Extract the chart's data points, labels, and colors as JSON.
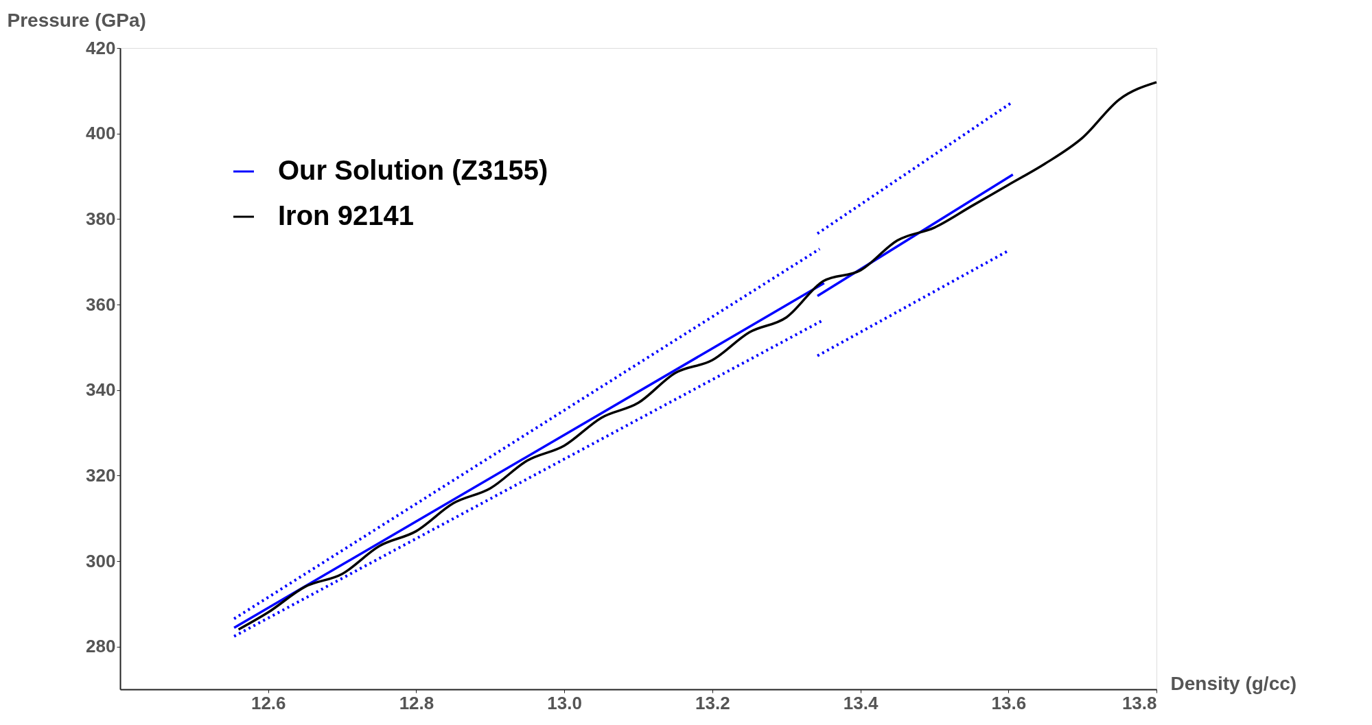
{
  "chart_data": {
    "type": "line",
    "xlabel": "Density (g/cc)",
    "ylabel": "Pressure (GPa)",
    "xlim": [
      12.4,
      13.8
    ],
    "ylim": [
      270,
      420
    ],
    "xticks": [
      12.6,
      12.8,
      {
        "value": 13.0,
        "label": "13.0"
      },
      13.2,
      13.4,
      13.6,
      {
        "value": 13.8,
        "label": "13.8"
      }
    ],
    "yticks": [
      280,
      300,
      320,
      340,
      360,
      380,
      400,
      420
    ],
    "grid": false,
    "legend": "top left",
    "marker": "none",
    "series": [
      {
        "name": "Our Solution (Z3155)",
        "color": "#0000ff",
        "line_style": "solid",
        "x": [
          12.554,
          13.351
        ],
        "values": [
          284.4,
          365
        ]
      },
      {
        "color": "#0000ff",
        "line_style": "solid",
        "x": [
          13.342,
          13.606
        ],
        "values": [
          362,
          390.4
        ]
      },
      {
        "color": "#0000ff",
        "line_style": "dotted",
        "x": [
          12.554,
          13.345
        ],
        "values": [
          286.5,
          373
        ]
      },
      {
        "color": "#0000ff",
        "line_style": "dotted",
        "x": [
          13.342,
          13.604
        ],
        "values": [
          376.6,
          407.2
        ]
      },
      {
        "color": "#0000ff",
        "line_style": "dotted",
        "x": [
          12.554,
          13.348
        ],
        "values": [
          282.4,
          356.2
        ]
      },
      {
        "color": "#0000ff",
        "line_style": "dotted",
        "x": [
          13.342,
          13.601
        ],
        "values": [
          348,
          372.7
        ]
      },
      {
        "name": "Iron 92141",
        "color": "#000000",
        "line_style": "solid",
        "x": [
          12.56,
          12.6,
          12.65,
          12.7,
          12.75,
          12.8,
          12.85,
          12.9,
          12.95,
          13.0,
          13.05,
          13.1,
          13.15,
          13.2,
          13.25,
          13.3,
          13.35,
          13.4,
          13.45,
          13.5,
          13.55,
          13.6,
          13.65,
          13.7,
          13.75,
          13.8
        ],
        "values": [
          284,
          288,
          294,
          297,
          303.5,
          307,
          313.5,
          317,
          323.5,
          327,
          333.5,
          337,
          344,
          347,
          353.5,
          357,
          365.5,
          368,
          375,
          378,
          383,
          388,
          393,
          399,
          408,
          412
        ]
      }
    ]
  }
}
